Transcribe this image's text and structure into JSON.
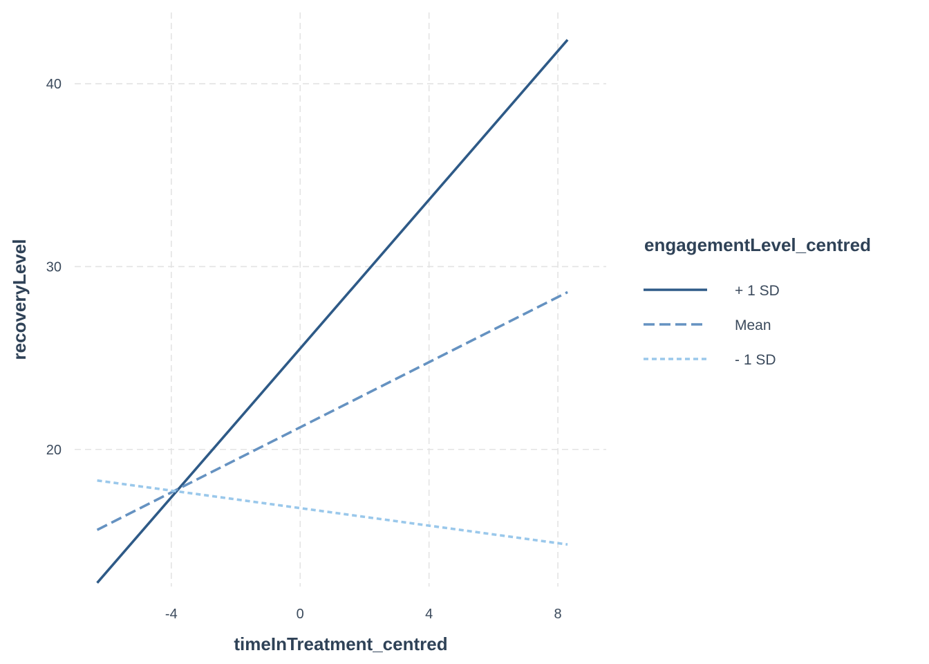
{
  "chart_data": {
    "type": "line",
    "title": "",
    "xlabel": "timeInTreatment_centred",
    "ylabel": "recoveryLevel",
    "xlim": [
      -7.0,
      9.5
    ],
    "ylim": [
      12.5,
      43.9
    ],
    "x_ticks": [
      -4,
      0,
      4,
      8
    ],
    "y_ticks": [
      20,
      30,
      40
    ],
    "grid": "on, dashed",
    "legend": {
      "title": "engagementLevel_centred",
      "position": "right"
    },
    "series": [
      {
        "name": "+ 1 SD",
        "color": "#2e5a87",
        "dash": "solid",
        "points": [
          [
            -6.3,
            12.7
          ],
          [
            8.3,
            42.4
          ]
        ]
      },
      {
        "name": "Mean",
        "color": "#6592c1",
        "dash": "dashed",
        "points": [
          [
            -6.3,
            15.6
          ],
          [
            8.3,
            28.6
          ]
        ]
      },
      {
        "name": "- 1 SD",
        "color": "#9ac8eb",
        "dash": "dotted",
        "points": [
          [
            -6.3,
            18.3
          ],
          [
            8.3,
            14.8
          ]
        ]
      }
    ]
  }
}
